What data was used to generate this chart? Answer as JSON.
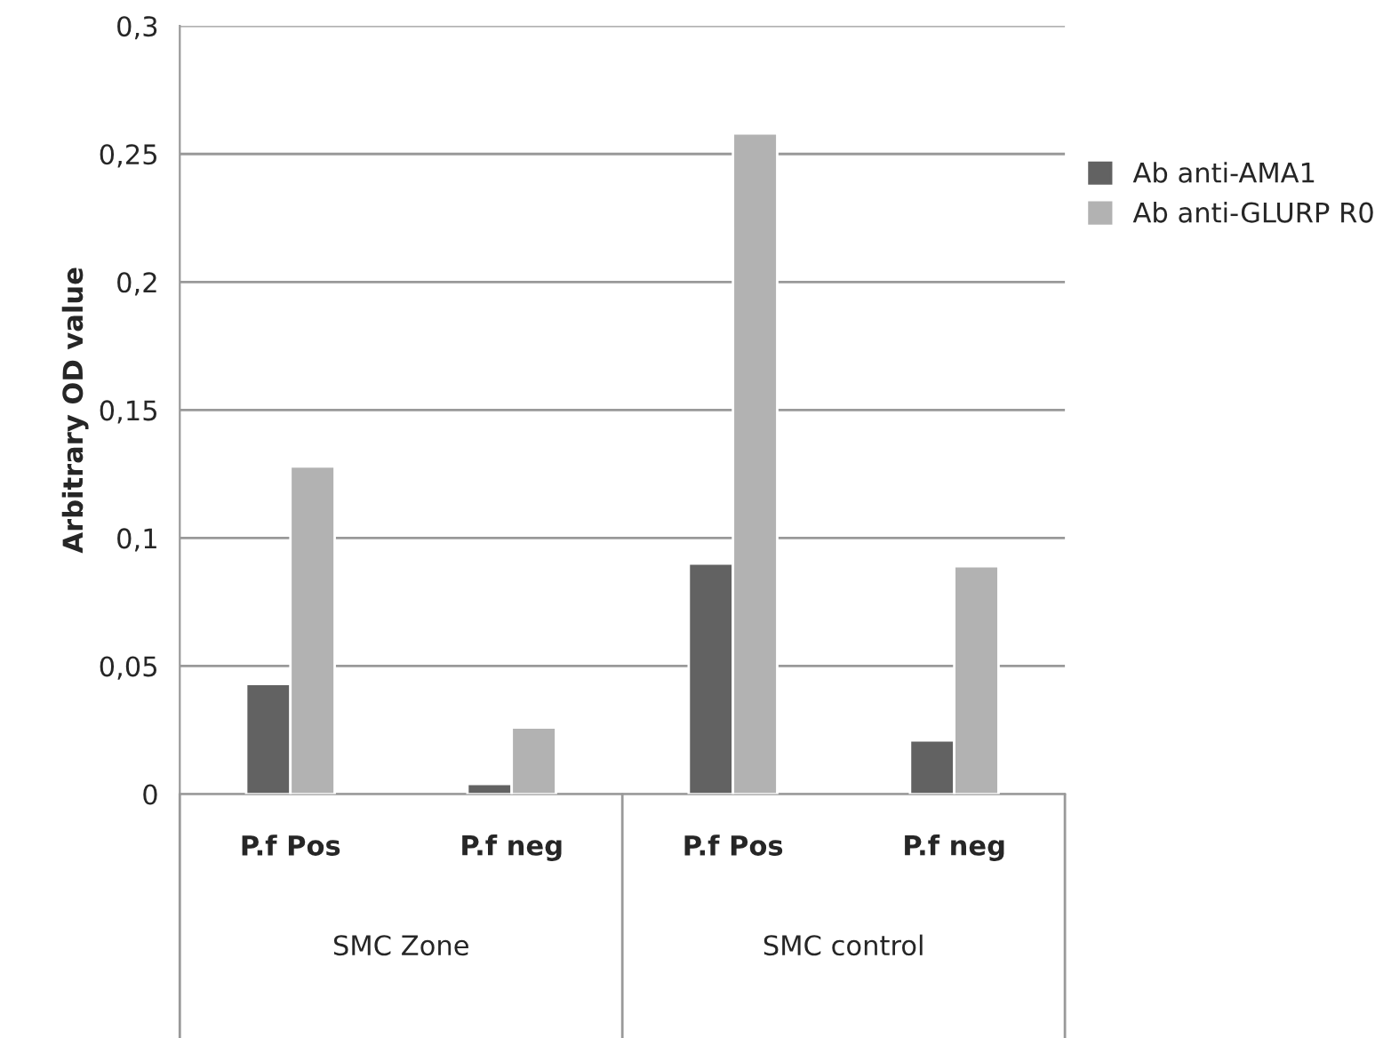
{
  "chart_data": {
    "type": "bar",
    "ylabel": "Arbitrary OD value",
    "categories": [
      "P.f Pos",
      "P.f neg",
      "P.f Pos",
      "P.f neg"
    ],
    "series": [
      {
        "name": "Ab anti-AMA1",
        "color": "#626262",
        "values": [
          0.043,
          0.004,
          0.09,
          0.021
        ]
      },
      {
        "name": "Ab anti-GLURP R0",
        "color": "#b2b2b2",
        "values": [
          0.128,
          0.026,
          0.258,
          0.089
        ]
      }
    ],
    "annotations": [
      "SMC Zone",
      "SMC control"
    ],
    "ylim": [
      0,
      0.3
    ],
    "yticks": [
      {
        "value": 0,
        "label": "0"
      },
      {
        "value": 0.05,
        "label": "0,05"
      },
      {
        "value": 0.1,
        "label": "0,1"
      },
      {
        "value": 0.15,
        "label": "0,15"
      },
      {
        "value": 0.2,
        "label": "0,2"
      },
      {
        "value": 0.25,
        "label": "0,25"
      },
      {
        "value": 0.3,
        "label": "0,3"
      }
    ],
    "grid": "y",
    "legend": "right"
  }
}
